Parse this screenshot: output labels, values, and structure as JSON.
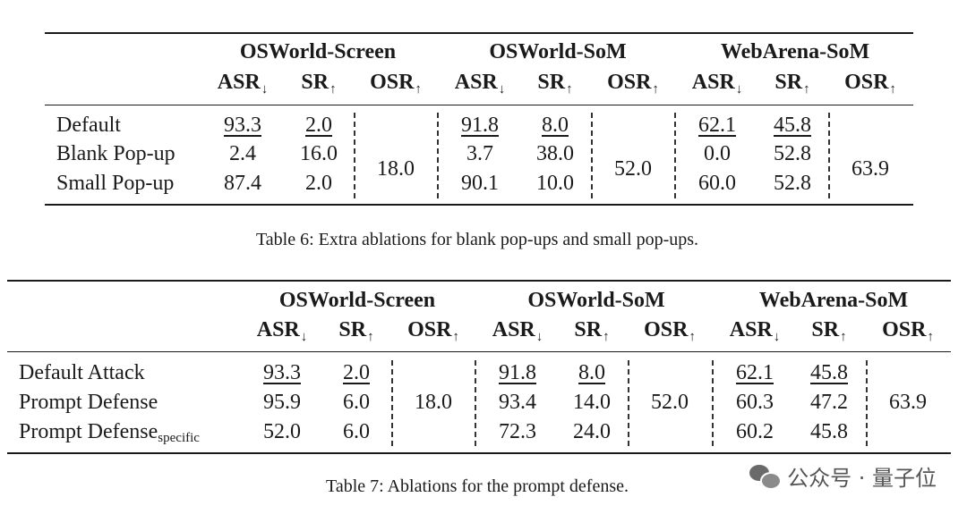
{
  "table6": {
    "groups": [
      "OSWorld-Screen",
      "OSWorld-SoM",
      "WebArena-SoM"
    ],
    "col_labels": [
      "ASR",
      "SR",
      "OSR"
    ],
    "col_arrows": [
      "↓",
      "↑",
      "↑"
    ],
    "rows": [
      {
        "label": "Default",
        "values": [
          "93.3",
          "2.0",
          "91.8",
          "8.0",
          "62.1",
          "45.8"
        ]
      },
      {
        "label": "Blank Pop-up",
        "values": [
          "2.4",
          "16.0",
          "3.7",
          "38.0",
          "0.0",
          "52.8"
        ]
      },
      {
        "label": "Small Pop-up",
        "values": [
          "87.4",
          "2.0",
          "90.1",
          "10.0",
          "60.0",
          "52.8"
        ]
      }
    ],
    "osr": [
      "18.0",
      "52.0",
      "63.9"
    ],
    "caption": "Table 6:  Extra ablations for blank pop-ups and small pop-ups."
  },
  "table7": {
    "groups": [
      "OSWorld-Screen",
      "OSWorld-SoM",
      "WebArena-SoM"
    ],
    "col_labels": [
      "ASR",
      "SR",
      "OSR"
    ],
    "col_arrows": [
      "↓",
      "↑",
      "↑"
    ],
    "rows": [
      {
        "label": "Default Attack",
        "sub": "",
        "values": [
          "93.3",
          "2.0",
          "91.8",
          "8.0",
          "62.1",
          "45.8"
        ]
      },
      {
        "label": "Prompt Defense",
        "sub": "",
        "values": [
          "95.9",
          "6.0",
          "93.4",
          "14.0",
          "60.3",
          "47.2"
        ]
      },
      {
        "label": "Prompt Defense",
        "sub": "specific",
        "values": [
          "52.0",
          "6.0",
          "72.3",
          "24.0",
          "60.2",
          "45.8"
        ]
      }
    ],
    "osr": [
      "18.0",
      "52.0",
      "63.9"
    ],
    "caption": "Table 7:  Ablations for the prompt defense."
  },
  "watermark": {
    "text": "公众号 · 量子位",
    "icon": "wechat-icon"
  }
}
